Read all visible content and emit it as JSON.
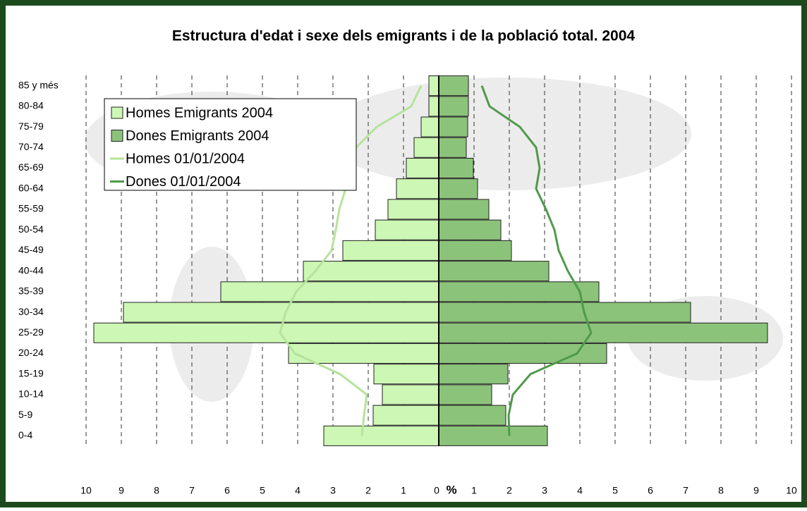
{
  "chart_data": {
    "type": "population-pyramid",
    "title": "Estructura d'edat i sexe dels emigrants i de la població total. 2004",
    "x_label": "%",
    "categories": [
      "0-4",
      "5-9",
      "10-14",
      "15-19",
      "20-24",
      "25-29",
      "30-34",
      "35-39",
      "40-44",
      "45-49",
      "50-54",
      "55-59",
      "60-64",
      "65-69",
      "70-74",
      "75-79",
      "80-84",
      "85 y més"
    ],
    "series": [
      {
        "name": "Homes Emigrants 2004",
        "type": "bar",
        "color": "#ccf7b4",
        "values": [
          -3.26,
          -1.86,
          -1.6,
          -1.84,
          -4.26,
          -9.78,
          -8.94,
          -6.18,
          -3.84,
          -2.72,
          -1.8,
          -1.44,
          -1.2,
          -0.92,
          -0.7,
          -0.5,
          -0.28,
          -0.28
        ]
      },
      {
        "name": "Dones Emigrants 2004",
        "type": "bar",
        "color": "#8cc37a",
        "values": [
          3.08,
          1.9,
          1.5,
          1.96,
          4.76,
          9.32,
          7.14,
          4.54,
          3.12,
          2.06,
          1.76,
          1.42,
          1.1,
          0.98,
          0.78,
          0.82,
          0.84,
          0.84
        ]
      },
      {
        "name": "Homes 01/01/2004",
        "type": "line",
        "color": "#b5e39c",
        "values": [
          -2.18,
          -2.12,
          -2.04,
          -2.8,
          -4.08,
          -4.5,
          -4.34,
          -4.04,
          -3.5,
          -3.04,
          -2.92,
          -2.82,
          -2.64,
          -2.5,
          -2.34,
          -1.76,
          -0.78,
          -0.5
        ]
      },
      {
        "name": "Dones 01/01/2004",
        "type": "line",
        "color": "#4f9a4a",
        "values": [
          2.0,
          1.98,
          2.1,
          2.6,
          3.92,
          4.32,
          4.12,
          4.0,
          3.66,
          3.4,
          3.28,
          3.04,
          2.76,
          2.86,
          2.76,
          2.3,
          1.44,
          1.22
        ]
      }
    ],
    "xlim": [
      -10,
      10
    ],
    "xticks": [
      {
        "value": -10,
        "label": "10"
      },
      {
        "value": -9,
        "label": "9"
      },
      {
        "value": -8,
        "label": "8"
      },
      {
        "value": -7,
        "label": "7"
      },
      {
        "value": -6,
        "label": "6"
      },
      {
        "value": -5,
        "label": "5"
      },
      {
        "value": -4,
        "label": "4"
      },
      {
        "value": -3,
        "label": "3"
      },
      {
        "value": -2,
        "label": "2"
      },
      {
        "value": -1,
        "label": "1"
      },
      0,
      1,
      2,
      3,
      4,
      5,
      6,
      7,
      8,
      9,
      10
    ],
    "grid": true,
    "legend": "upper-left"
  }
}
